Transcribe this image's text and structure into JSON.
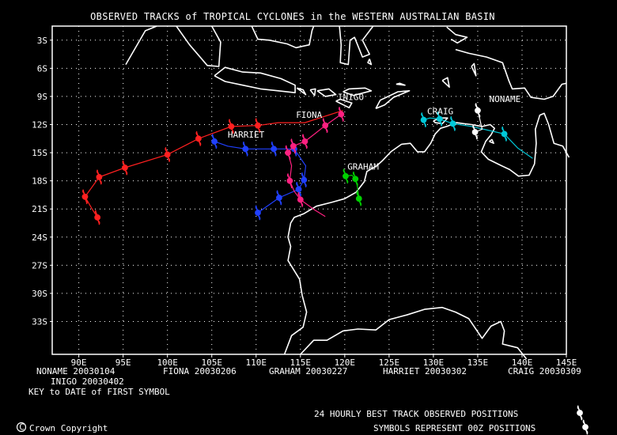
{
  "title": "OBSERVED TRACKS of TROPICAL CYCLONES in the WESTERN AUSTRALIAN BASIN",
  "map": {
    "lon_range": [
      87,
      145
    ],
    "lat_range": [
      -36.5,
      -1.5
    ],
    "lon_ticks": [
      "90E",
      "95E",
      "100E",
      "105E",
      "110E",
      "115E",
      "120E",
      "125E",
      "130E",
      "135E",
      "140E",
      "145E"
    ],
    "lon_tick_values": [
      90,
      95,
      100,
      105,
      110,
      115,
      120,
      125,
      130,
      135,
      140,
      145
    ],
    "lat_ticks": [
      "3S",
      "6S",
      "9S",
      "12S",
      "15S",
      "18S",
      "21S",
      "24S",
      "27S",
      "30S",
      "33S"
    ],
    "lat_tick_values": [
      -3,
      -6,
      -9,
      -12,
      -15,
      -18,
      -21,
      -24,
      -27,
      -30,
      -33
    ],
    "grid": "dotted",
    "background": "#000000",
    "land_outline_color": "#ffffff"
  },
  "cyclones": [
    {
      "name": "FIONA",
      "color": "#ff2020",
      "first_date": "20030206",
      "track": [
        [
          119.8,
          -10.5
        ],
        [
          115.5,
          -11.8
        ],
        [
          112.5,
          -11.8
        ],
        [
          110.2,
          -12.1
        ],
        [
          107.2,
          -12.2
        ],
        [
          103.5,
          -13.5
        ],
        [
          100.0,
          -15.2
        ],
        [
          95.2,
          -16.6
        ],
        [
          92.3,
          -17.6
        ],
        [
          90.7,
          -19.7
        ],
        [
          91.5,
          -21.0
        ],
        [
          92.1,
          -21.9
        ]
      ],
      "symbols": [
        [
          110.2,
          -12.1
        ],
        [
          107.2,
          -12.2
        ],
        [
          103.5,
          -13.5
        ],
        [
          100.0,
          -15.2
        ],
        [
          95.2,
          -16.6
        ],
        [
          92.3,
          -17.6
        ],
        [
          90.7,
          -19.7
        ],
        [
          92.1,
          -21.9
        ]
      ],
      "label_pos": [
        114.5,
        -11.3
      ]
    },
    {
      "name": "GRAHAM",
      "color": "#00d000",
      "first_date": "20030227",
      "track": [
        [
          120.1,
          -17.5
        ],
        [
          120.8,
          -17.4
        ],
        [
          121.2,
          -17.8
        ],
        [
          121.4,
          -18.4
        ],
        [
          121.6,
          -19.9
        ]
      ],
      "symbols": [
        [
          120.1,
          -17.5
        ],
        [
          121.2,
          -17.8
        ],
        [
          121.6,
          -19.9
        ]
      ],
      "label_pos": [
        120.3,
        -16.8
      ]
    },
    {
      "name": "HARRIET",
      "color": "#2040ff",
      "first_date": "20030302",
      "track": [
        [
          105.3,
          -13.8
        ],
        [
          106.8,
          -14.3
        ],
        [
          108.8,
          -14.6
        ],
        [
          112.0,
          -14.6
        ],
        [
          114.3,
          -14.6
        ],
        [
          115.6,
          -16.4
        ],
        [
          115.4,
          -17.9
        ],
        [
          114.8,
          -18.9
        ],
        [
          112.6,
          -19.8
        ],
        [
          110.2,
          -21.4
        ]
      ],
      "symbols": [
        [
          105.3,
          -13.8
        ],
        [
          108.8,
          -14.6
        ],
        [
          112.0,
          -14.6
        ],
        [
          114.3,
          -14.6
        ],
        [
          115.4,
          -17.9
        ],
        [
          114.8,
          -18.9
        ],
        [
          112.6,
          -19.8
        ],
        [
          110.2,
          -21.4
        ]
      ],
      "label_pos": [
        106.8,
        -13.4
      ]
    },
    {
      "name": "INIGO",
      "color": "#ff2080",
      "first_date": "20030402",
      "track": [
        [
          119.6,
          -10.9
        ],
        [
          117.8,
          -12.1
        ],
        [
          116.6,
          -13.0
        ],
        [
          115.5,
          -13.8
        ],
        [
          114.2,
          -14.3
        ],
        [
          113.6,
          -15.0
        ],
        [
          114.0,
          -16.4
        ],
        [
          113.8,
          -18.0
        ],
        [
          114.3,
          -19.1
        ],
        [
          115.0,
          -20.0
        ],
        [
          116.6,
          -21.1
        ],
        [
          117.8,
          -21.8
        ]
      ],
      "symbols": [
        [
          119.6,
          -10.9
        ],
        [
          117.8,
          -12.1
        ],
        [
          115.5,
          -13.8
        ],
        [
          114.2,
          -14.3
        ],
        [
          113.6,
          -15.0
        ],
        [
          113.8,
          -18.0
        ],
        [
          115.0,
          -20.0
        ]
      ],
      "label_pos": [
        119.2,
        -9.4
      ]
    },
    {
      "name": "CRAIG",
      "color": "#00c8d8",
      "first_date": "20030309",
      "track": [
        [
          128.9,
          -11.5
        ],
        [
          129.6,
          -11.3
        ],
        [
          130.7,
          -11.4
        ],
        [
          132.2,
          -11.9
        ],
        [
          134.3,
          -12.2
        ],
        [
          138.0,
          -13.0
        ],
        [
          139.5,
          -14.5
        ],
        [
          141.2,
          -15.6
        ]
      ],
      "symbols": [
        [
          128.9,
          -11.5
        ],
        [
          130.7,
          -11.4
        ],
        [
          132.2,
          -11.9
        ],
        [
          138.0,
          -13.0
        ]
      ],
      "label_pos": [
        129.3,
        -10.9
      ]
    },
    {
      "name": "NONAME",
      "color": "#ffffff",
      "first_date": "20030104",
      "track": [
        [
          135.0,
          -10.5
        ],
        [
          135.3,
          -11.7
        ],
        [
          135.5,
          -12.5
        ],
        [
          134.7,
          -12.8
        ]
      ],
      "symbols": [
        [
          135.0,
          -10.5
        ],
        [
          134.7,
          -12.8
        ]
      ],
      "label_pos": [
        136.3,
        -9.6
      ]
    }
  ],
  "key_rows": [
    [
      {
        "name": "NONAME",
        "date": "20030104"
      },
      {
        "name": "FIONA",
        "date": "20030206"
      },
      {
        "name": "GRAHAM",
        "date": "20030227"
      },
      {
        "name": "HARRIET",
        "date": "20030302"
      },
      {
        "name": "CRAIG",
        "date": "20030309"
      }
    ],
    [
      {
        "name": "INIGO",
        "date": "20030402"
      }
    ]
  ],
  "key_caption": "KEY to DATE of FIRST SYMBOL",
  "copyright": "Crown Copyright",
  "note_line1": "24 HOURLY BEST TRACK OBSERVED POSITIONS",
  "note_line2": "SYMBOLS REPRESENT 00Z POSITIONS",
  "legend_icon": "cyclone-symbol-icon"
}
